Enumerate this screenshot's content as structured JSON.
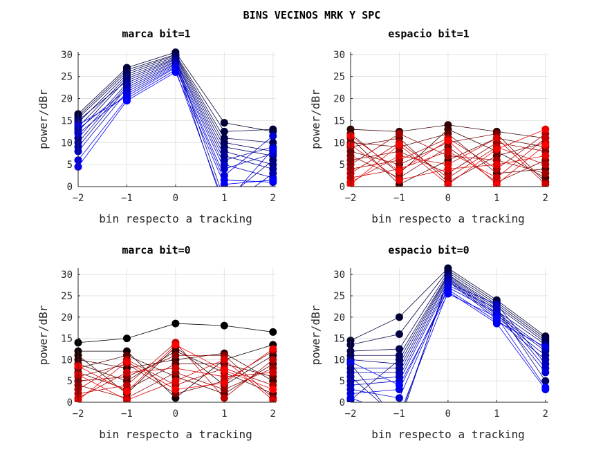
{
  "title": "BINS VECINOS MRK Y SPC",
  "chart_data": [
    {
      "type": "line",
      "title": "marca bit=1",
      "xlabel": "bin respecto a tracking",
      "ylabel": "power/dBr",
      "x": [
        -2,
        -1,
        0,
        1,
        2
      ],
      "xticks": [
        "-2",
        "-1",
        "0",
        "1",
        "2"
      ],
      "yticks": [
        "0",
        "5",
        "10",
        "15",
        "20",
        "25",
        "30"
      ],
      "xlim": [
        -2,
        2.06
      ],
      "ylim": [
        0,
        30.6
      ],
      "grid": true,
      "color_from": "#000033",
      "color_to": "#0000ff",
      "series": [
        [
          16.5,
          27,
          30.5,
          14.5,
          12.5
        ],
        [
          16,
          26.5,
          30,
          12.5,
          13
        ],
        [
          15.5,
          26,
          29.8,
          11,
          10
        ],
        [
          14.5,
          25.5,
          29.5,
          10,
          8
        ],
        [
          13.5,
          25,
          29.2,
          9,
          7
        ],
        [
          12.5,
          24.5,
          29,
          -3,
          6
        ],
        [
          15,
          24,
          28.8,
          8,
          5
        ],
        [
          11,
          23.5,
          28.5,
          7,
          4
        ],
        [
          10,
          23,
          28.3,
          6,
          9
        ],
        [
          9,
          22.5,
          28,
          -5,
          3
        ],
        [
          13,
          22,
          27.8,
          5,
          2
        ],
        [
          8,
          21.5,
          27.5,
          4,
          7.5
        ],
        [
          12,
          21,
          27.2,
          2.5,
          11.5
        ],
        [
          14,
          20.5,
          27,
          1.5,
          1
        ],
        [
          6,
          20,
          26.5,
          -4,
          8.5
        ],
        [
          4.5,
          19.5,
          26,
          0.5,
          1.5
        ]
      ]
    },
    {
      "type": "line",
      "title": "espacio bit=1",
      "xlabel": "bin respecto a tracking",
      "ylabel": "power/dBr",
      "x": [
        -2,
        -1,
        0,
        1,
        2
      ],
      "xticks": [
        "-2",
        "-1",
        "0",
        "1",
        "2"
      ],
      "yticks": [
        "0",
        "5",
        "10",
        "15",
        "20",
        "25",
        "30"
      ],
      "xlim": [
        -2,
        2.06
      ],
      "ylim": [
        0,
        30.6
      ],
      "grid": true,
      "color_from": "#330000",
      "color_to": "#ff0000",
      "series": [
        [
          13,
          12.5,
          14,
          12.5,
          11
        ],
        [
          12,
          3,
          13,
          8,
          2
        ],
        [
          11,
          0.5,
          6,
          11,
          9
        ],
        [
          10,
          9,
          12,
          3,
          4
        ],
        [
          9,
          11,
          1,
          7,
          10
        ],
        [
          8,
          5,
          10,
          12,
          1
        ],
        [
          7,
          2,
          9,
          1,
          6
        ],
        [
          6,
          8,
          3,
          10,
          8
        ],
        [
          5,
          12,
          7,
          6,
          3
        ],
        [
          4,
          6,
          11,
          4,
          12
        ],
        [
          3,
          10,
          2,
          9,
          5
        ],
        [
          2,
          4,
          8,
          2,
          11
        ],
        [
          1,
          7,
          5,
          11,
          0.5
        ],
        [
          9.5,
          1.5,
          4,
          5,
          7
        ],
        [
          0.5,
          9.5,
          0.5,
          8.5,
          13
        ],
        [
          11.5,
          3.5,
          10.5,
          0.5,
          9.5
        ]
      ]
    },
    {
      "type": "line",
      "title": "marca bit=0",
      "xlabel": "bin respecto a tracking",
      "ylabel": "power/dBr",
      "x": [
        -2,
        -1,
        0,
        1,
        2
      ],
      "xticks": [
        "-2",
        "-1",
        "0",
        "1",
        "2"
      ],
      "yticks": [
        "0",
        "5",
        "10",
        "15",
        "20",
        "25",
        "30"
      ],
      "xlim": [
        -2,
        2.06
      ],
      "ylim": [
        0,
        31.5
      ],
      "grid": true,
      "color_from": "#000000",
      "color_to": "#ff0000",
      "series": [
        [
          14,
          15,
          18.5,
          18,
          16.5
        ],
        [
          12,
          12,
          1,
          10,
          13.5
        ],
        [
          11,
          2,
          13,
          4,
          11
        ],
        [
          10,
          8,
          10,
          11.5,
          5
        ],
        [
          9,
          5,
          12,
          7,
          2
        ],
        [
          8,
          11,
          6,
          2,
          9
        ],
        [
          7,
          3,
          9,
          9,
          6
        ],
        [
          6,
          9,
          2,
          5,
          12
        ],
        [
          5,
          6,
          11,
          11,
          1
        ],
        [
          4,
          1,
          7,
          3,
          8
        ],
        [
          3,
          10,
          4,
          8,
          4
        ],
        [
          2,
          4,
          14,
          1,
          10
        ],
        [
          1,
          7,
          8,
          6,
          7
        ],
        [
          6.5,
          0.5,
          5,
          10,
          0.5
        ],
        [
          0.5,
          9.5,
          3,
          4.5,
          12.5
        ],
        [
          8.5,
          2.5,
          13.5,
          7.5,
          3
        ]
      ]
    },
    {
      "type": "line",
      "title": "espacio bit=0",
      "xlabel": "bin respecto a tracking",
      "ylabel": "power/dBr",
      "x": [
        -2,
        -1,
        0,
        1,
        2
      ],
      "xticks": [
        "-2",
        "-1",
        "0",
        "1",
        "2"
      ],
      "yticks": [
        "0",
        "5",
        "10",
        "15",
        "20",
        "25",
        "30"
      ],
      "xlim": [
        -2,
        2.06
      ],
      "ylim": [
        0,
        31.5
      ],
      "grid": true,
      "color_from": "#000033",
      "color_to": "#0000ff",
      "series": [
        [
          14.5,
          20,
          31.5,
          24,
          15.5
        ],
        [
          13.5,
          16,
          31,
          23.5,
          15
        ],
        [
          12,
          12.5,
          30.5,
          23,
          14.5
        ],
        [
          11,
          11,
          30,
          22.5,
          14
        ],
        [
          0.5,
          10,
          29.8,
          22,
          5
        ],
        [
          10,
          9,
          29.5,
          21.5,
          13.5
        ],
        [
          9,
          -5,
          29.2,
          21,
          12.5
        ],
        [
          8,
          8,
          29,
          20.5,
          12
        ],
        [
          7,
          7,
          28.7,
          20,
          11
        ],
        [
          6,
          -4,
          28.4,
          19.5,
          10
        ],
        [
          5,
          6,
          28,
          23,
          9
        ],
        [
          4,
          5,
          27.5,
          22,
          8
        ],
        [
          3,
          1,
          27,
          21,
          7
        ],
        [
          2,
          3,
          26.5,
          19,
          13
        ],
        [
          1,
          -3,
          26,
          18.5,
          3
        ],
        [
          9.5,
          4,
          25.5,
          20,
          3.5
        ]
      ]
    }
  ]
}
